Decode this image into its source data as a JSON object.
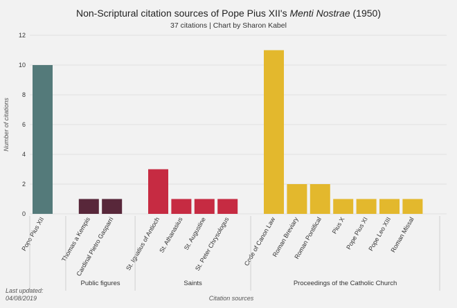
{
  "chart_data": {
    "type": "bar",
    "title_prefix": "Non-Scriptural citation sources of Pope Pius XII's ",
    "title_italic": "Menti Nostrae",
    "title_suffix": " (1950)",
    "subtitle": "37 citations | Chart by Sharon Kabel",
    "ylabel": "Number of citations",
    "xlabel": "Citation sources",
    "ylim": [
      0,
      12
    ],
    "yticks": [
      0,
      2,
      4,
      6,
      8,
      10,
      12
    ],
    "grid": true,
    "colors": {
      "background": "#f2f2f2",
      "grid": "#e0e0e0",
      "text": "#333333",
      "axis_label": "#555555"
    },
    "categories": [
      "Pope Pius XII",
      "Thomas a Kempis",
      "Cardinal Pietro Gasparri",
      "St. Ignatius of Antioch",
      "St. Athanasius",
      "St. Augustine",
      "St. Peter Chrysologus",
      "Code of Canon  Law",
      "Roman Breviary",
      "Roman Pontifical",
      "Pius X",
      "Pope Pius XI",
      "Pope Leo XIII",
      "Roman Missal"
    ],
    "values": [
      10,
      1,
      1,
      3,
      1,
      1,
      1,
      11,
      2,
      2,
      1,
      1,
      1,
      1
    ],
    "groups": [
      {
        "name": "",
        "color": "#547a7a",
        "members": [
          "Pope Pius XII"
        ]
      },
      {
        "name": "Public figures",
        "color": "#58273a",
        "members": [
          "Thomas a Kempis",
          "Cardinal Pietro Gasparri"
        ]
      },
      {
        "name": "Saints",
        "color": "#c62b42",
        "members": [
          "St. Ignatius of Antioch",
          "St. Athanasius",
          "St. Augustine",
          "St. Peter Chrysologus"
        ]
      },
      {
        "name": "Proceedings of the Catholic Church",
        "color": "#e3b82d",
        "members": [
          "Code of Canon  Law",
          "Roman Breviary",
          "Roman Pontifical",
          "Pius X",
          "Pope Pius XI",
          "Pope Leo XIII",
          "Roman Missal"
        ]
      }
    ]
  },
  "footer": {
    "updated_label": "Last updated:",
    "updated_date": "04/08/2019"
  }
}
